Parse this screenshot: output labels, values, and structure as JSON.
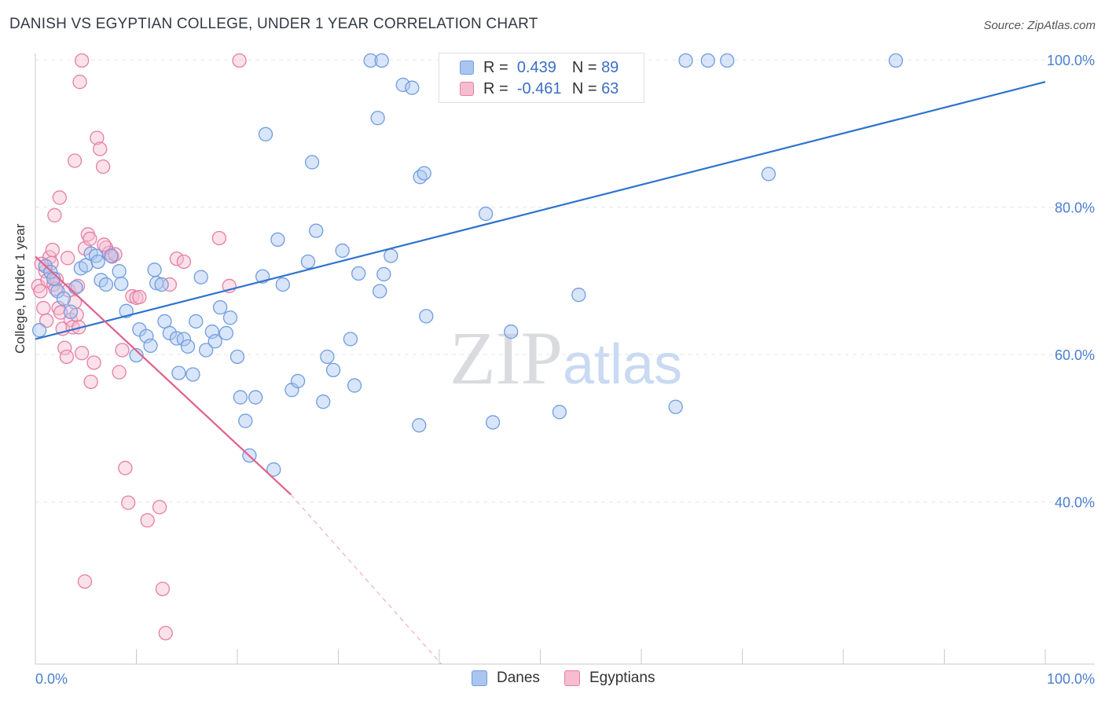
{
  "title": "DANISH VS EGYPTIAN COLLEGE, UNDER 1 YEAR CORRELATION CHART",
  "source": "Source: ZipAtlas.com",
  "watermark": "ZIPatlas",
  "legend_stats": [
    {
      "r_label": "R =",
      "r_value": "0.439",
      "n_label": "N =",
      "n_value": "89",
      "color": "#6f9de0"
    },
    {
      "r_label": "R =",
      "r_value": "-0.461",
      "n_label": "N =",
      "n_value": "63",
      "color": "#e57fa5"
    }
  ],
  "colors": {
    "danes_fill": "#aac6f0",
    "danes_stroke": "#6f9de0",
    "danes_line": "#2f72cf",
    "egypt_fill": "#f6bcd0",
    "egypt_stroke": "#e57fa5",
    "egypt_line": "#e0608e",
    "tick_label": "#4a7fd0"
  },
  "chart_data": {
    "type": "scatter",
    "title": "DANISH VS EGYPTIAN COLLEGE, UNDER 1 YEAR CORRELATION CHART",
    "xlabel": "",
    "ylabel": "College, Under 1 year",
    "xlim": [
      0,
      100
    ],
    "ylim": [
      18,
      101.5
    ],
    "x_tick_labels": [
      "0.0%",
      "100.0%"
    ],
    "y_ticks": [
      40,
      60,
      80,
      100
    ],
    "y_tick_labels": [
      "40.0%",
      "60.0%",
      "80.0%",
      "100.0%"
    ],
    "grid": true,
    "legend_position": "bottom-center",
    "series": [
      {
        "name": "Danes",
        "r": 0.439,
        "n": 89,
        "trend": {
          "x0": 0,
          "y0": 62.1,
          "x1": 100,
          "y1": 97.0
        },
        "points": [
          [
            0.4,
            63.3
          ],
          [
            1,
            72
          ],
          [
            1.5,
            71.2
          ],
          [
            1.8,
            70.3
          ],
          [
            2.2,
            68.6
          ],
          [
            2.8,
            67.6
          ],
          [
            3.5,
            65.8
          ],
          [
            4,
            69.1
          ],
          [
            4.5,
            71.7
          ],
          [
            5,
            72.1
          ],
          [
            5.5,
            73.7
          ],
          [
            6,
            73.4
          ],
          [
            6.2,
            72.6
          ],
          [
            6.5,
            70.1
          ],
          [
            7,
            69.5
          ],
          [
            7.5,
            73.4
          ],
          [
            8.3,
            71.3
          ],
          [
            8.5,
            69.6
          ],
          [
            9,
            65.9
          ],
          [
            10.3,
            63.4
          ],
          [
            11,
            62.5
          ],
          [
            10,
            59.9
          ],
          [
            11.4,
            61.2
          ],
          [
            11.8,
            71.5
          ],
          [
            12,
            69.7
          ],
          [
            12.5,
            69.5
          ],
          [
            12.8,
            64.5
          ],
          [
            13.3,
            62.9
          ],
          [
            14,
            62.2
          ],
          [
            14.2,
            57.5
          ],
          [
            14.7,
            62.1
          ],
          [
            15.1,
            61.1
          ],
          [
            15.6,
            57.3
          ],
          [
            15.9,
            64.5
          ],
          [
            16.4,
            70.5
          ],
          [
            16.9,
            60.6
          ],
          [
            17.5,
            63.1
          ],
          [
            17.8,
            61.8
          ],
          [
            18.3,
            66.4
          ],
          [
            18.9,
            62.9
          ],
          [
            19.3,
            65
          ],
          [
            20,
            59.7
          ],
          [
            20.3,
            54.2
          ],
          [
            20.8,
            51
          ],
          [
            21.2,
            46.3
          ],
          [
            21.8,
            54.2
          ],
          [
            22.5,
            70.6
          ],
          [
            22.8,
            89.9
          ],
          [
            23.6,
            44.4
          ],
          [
            24,
            75.6
          ],
          [
            24.5,
            69.5
          ],
          [
            25.4,
            55.2
          ],
          [
            26,
            56.4
          ],
          [
            27,
            72.6
          ],
          [
            27.4,
            86.1
          ],
          [
            27.8,
            76.8
          ],
          [
            28.5,
            53.6
          ],
          [
            28.9,
            59.7
          ],
          [
            29.5,
            57.9
          ],
          [
            30.4,
            74.1
          ],
          [
            31.2,
            62.1
          ],
          [
            31.6,
            55.8
          ],
          [
            32,
            71
          ],
          [
            33.9,
            92.1
          ],
          [
            34.1,
            68.6
          ],
          [
            34.5,
            70.9
          ],
          [
            35.2,
            73.4
          ],
          [
            36.4,
            96.6
          ],
          [
            37.3,
            96.2
          ],
          [
            38.1,
            84.1
          ],
          [
            38.5,
            84.6
          ],
          [
            38,
            50.4
          ],
          [
            41.7,
            99.9
          ],
          [
            42.6,
            99.8
          ],
          [
            44.6,
            79.1
          ],
          [
            45.3,
            50.8
          ],
          [
            47.1,
            63.1
          ],
          [
            51.9,
            52.2
          ],
          [
            53.8,
            68.1
          ],
          [
            56.6,
            99.9
          ],
          [
            63.4,
            52.9
          ],
          [
            64.4,
            99.9
          ],
          [
            66.6,
            99.9
          ],
          [
            68.5,
            99.9
          ],
          [
            72.6,
            84.5
          ],
          [
            85.2,
            99.9
          ],
          [
            38.7,
            65.2
          ],
          [
            33.2,
            99.9
          ],
          [
            34.3,
            99.9
          ]
        ]
      },
      {
        "name": "Egyptians",
        "r": -0.461,
        "n": 63,
        "trend": {
          "x0": 0,
          "y0": 73.3,
          "x1": 25.3,
          "y1": 41.0
        },
        "trend_dashed_to": {
          "x": 40.2,
          "y": 18.0
        },
        "points": [
          [
            0.3,
            69.3
          ],
          [
            0.5,
            68.6
          ],
          [
            0.8,
            66.3
          ],
          [
            1,
            71.3
          ],
          [
            1.2,
            70.1
          ],
          [
            1.4,
            73.2
          ],
          [
            1.6,
            72.4
          ],
          [
            1.8,
            69.5
          ],
          [
            2,
            68.9
          ],
          [
            2.3,
            66.3
          ],
          [
            2.5,
            65.7
          ],
          [
            2.7,
            63.5
          ],
          [
            2.9,
            60.9
          ],
          [
            3.1,
            59.7
          ],
          [
            3.3,
            68.7
          ],
          [
            3.5,
            64.7
          ],
          [
            3.7,
            63.7
          ],
          [
            3.9,
            67.1
          ],
          [
            4.1,
            65.4
          ],
          [
            4.3,
            63.7
          ],
          [
            4.6,
            60.2
          ],
          [
            4.9,
            74.4
          ],
          [
            5.2,
            76.3
          ],
          [
            5.5,
            56.3
          ],
          [
            5.8,
            58.9
          ],
          [
            6.1,
            89.4
          ],
          [
            6.4,
            87.9
          ],
          [
            6.7,
            85.5
          ],
          [
            7,
            74.5
          ],
          [
            7.3,
            73.8
          ],
          [
            7.6,
            73.3
          ],
          [
            7.9,
            73.6
          ],
          [
            8.3,
            57.6
          ],
          [
            8.6,
            60.6
          ],
          [
            8.9,
            44.6
          ],
          [
            9.2,
            39.9
          ],
          [
            9.6,
            67.9
          ],
          [
            10,
            67.7
          ],
          [
            10.3,
            67.8
          ],
          [
            11.1,
            37.5
          ],
          [
            12.3,
            39.3
          ],
          [
            12.6,
            28.2
          ],
          [
            12.9,
            22.2
          ],
          [
            13.3,
            69.5
          ],
          [
            14,
            73
          ],
          [
            14.7,
            72.6
          ],
          [
            3.9,
            86.3
          ],
          [
            2.4,
            81.3
          ],
          [
            1.9,
            78.9
          ],
          [
            4.4,
            97
          ],
          [
            4.6,
            99.9
          ],
          [
            4.9,
            29.2
          ],
          [
            18.2,
            75.8
          ],
          [
            19.2,
            69.3
          ],
          [
            20.2,
            99.9
          ],
          [
            2.1,
            70.2
          ],
          [
            0.6,
            72.3
          ],
          [
            1.7,
            74.2
          ],
          [
            3.2,
            73.1
          ],
          [
            5.4,
            75.7
          ],
          [
            6.8,
            74.9
          ],
          [
            4.2,
            69.3
          ],
          [
            1.1,
            64.6
          ]
        ]
      }
    ]
  }
}
